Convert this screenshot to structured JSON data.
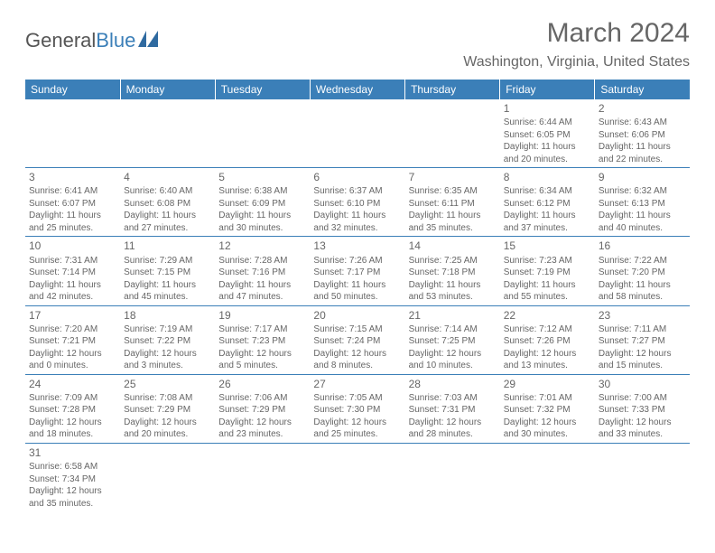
{
  "brand": {
    "left": "General",
    "right": "Blue"
  },
  "header": {
    "title": "March 2024",
    "location": "Washington, Virginia, United States"
  },
  "colors": {
    "header_bg": "#3b7fb8",
    "header_fg": "#ffffff",
    "row_divider": "#3b7fb8",
    "text": "#666666"
  },
  "daynames": [
    "Sunday",
    "Monday",
    "Tuesday",
    "Wednesday",
    "Thursday",
    "Friday",
    "Saturday"
  ],
  "weeks": [
    [
      null,
      null,
      null,
      null,
      null,
      {
        "n": "1",
        "sunrise": "Sunrise: 6:44 AM",
        "sunset": "Sunset: 6:05 PM",
        "day1": "Daylight: 11 hours",
        "day2": "and 20 minutes."
      },
      {
        "n": "2",
        "sunrise": "Sunrise: 6:43 AM",
        "sunset": "Sunset: 6:06 PM",
        "day1": "Daylight: 11 hours",
        "day2": "and 22 minutes."
      }
    ],
    [
      {
        "n": "3",
        "sunrise": "Sunrise: 6:41 AM",
        "sunset": "Sunset: 6:07 PM",
        "day1": "Daylight: 11 hours",
        "day2": "and 25 minutes."
      },
      {
        "n": "4",
        "sunrise": "Sunrise: 6:40 AM",
        "sunset": "Sunset: 6:08 PM",
        "day1": "Daylight: 11 hours",
        "day2": "and 27 minutes."
      },
      {
        "n": "5",
        "sunrise": "Sunrise: 6:38 AM",
        "sunset": "Sunset: 6:09 PM",
        "day1": "Daylight: 11 hours",
        "day2": "and 30 minutes."
      },
      {
        "n": "6",
        "sunrise": "Sunrise: 6:37 AM",
        "sunset": "Sunset: 6:10 PM",
        "day1": "Daylight: 11 hours",
        "day2": "and 32 minutes."
      },
      {
        "n": "7",
        "sunrise": "Sunrise: 6:35 AM",
        "sunset": "Sunset: 6:11 PM",
        "day1": "Daylight: 11 hours",
        "day2": "and 35 minutes."
      },
      {
        "n": "8",
        "sunrise": "Sunrise: 6:34 AM",
        "sunset": "Sunset: 6:12 PM",
        "day1": "Daylight: 11 hours",
        "day2": "and 37 minutes."
      },
      {
        "n": "9",
        "sunrise": "Sunrise: 6:32 AM",
        "sunset": "Sunset: 6:13 PM",
        "day1": "Daylight: 11 hours",
        "day2": "and 40 minutes."
      }
    ],
    [
      {
        "n": "10",
        "sunrise": "Sunrise: 7:31 AM",
        "sunset": "Sunset: 7:14 PM",
        "day1": "Daylight: 11 hours",
        "day2": "and 42 minutes."
      },
      {
        "n": "11",
        "sunrise": "Sunrise: 7:29 AM",
        "sunset": "Sunset: 7:15 PM",
        "day1": "Daylight: 11 hours",
        "day2": "and 45 minutes."
      },
      {
        "n": "12",
        "sunrise": "Sunrise: 7:28 AM",
        "sunset": "Sunset: 7:16 PM",
        "day1": "Daylight: 11 hours",
        "day2": "and 47 minutes."
      },
      {
        "n": "13",
        "sunrise": "Sunrise: 7:26 AM",
        "sunset": "Sunset: 7:17 PM",
        "day1": "Daylight: 11 hours",
        "day2": "and 50 minutes."
      },
      {
        "n": "14",
        "sunrise": "Sunrise: 7:25 AM",
        "sunset": "Sunset: 7:18 PM",
        "day1": "Daylight: 11 hours",
        "day2": "and 53 minutes."
      },
      {
        "n": "15",
        "sunrise": "Sunrise: 7:23 AM",
        "sunset": "Sunset: 7:19 PM",
        "day1": "Daylight: 11 hours",
        "day2": "and 55 minutes."
      },
      {
        "n": "16",
        "sunrise": "Sunrise: 7:22 AM",
        "sunset": "Sunset: 7:20 PM",
        "day1": "Daylight: 11 hours",
        "day2": "and 58 minutes."
      }
    ],
    [
      {
        "n": "17",
        "sunrise": "Sunrise: 7:20 AM",
        "sunset": "Sunset: 7:21 PM",
        "day1": "Daylight: 12 hours",
        "day2": "and 0 minutes."
      },
      {
        "n": "18",
        "sunrise": "Sunrise: 7:19 AM",
        "sunset": "Sunset: 7:22 PM",
        "day1": "Daylight: 12 hours",
        "day2": "and 3 minutes."
      },
      {
        "n": "19",
        "sunrise": "Sunrise: 7:17 AM",
        "sunset": "Sunset: 7:23 PM",
        "day1": "Daylight: 12 hours",
        "day2": "and 5 minutes."
      },
      {
        "n": "20",
        "sunrise": "Sunrise: 7:15 AM",
        "sunset": "Sunset: 7:24 PM",
        "day1": "Daylight: 12 hours",
        "day2": "and 8 minutes."
      },
      {
        "n": "21",
        "sunrise": "Sunrise: 7:14 AM",
        "sunset": "Sunset: 7:25 PM",
        "day1": "Daylight: 12 hours",
        "day2": "and 10 minutes."
      },
      {
        "n": "22",
        "sunrise": "Sunrise: 7:12 AM",
        "sunset": "Sunset: 7:26 PM",
        "day1": "Daylight: 12 hours",
        "day2": "and 13 minutes."
      },
      {
        "n": "23",
        "sunrise": "Sunrise: 7:11 AM",
        "sunset": "Sunset: 7:27 PM",
        "day1": "Daylight: 12 hours",
        "day2": "and 15 minutes."
      }
    ],
    [
      {
        "n": "24",
        "sunrise": "Sunrise: 7:09 AM",
        "sunset": "Sunset: 7:28 PM",
        "day1": "Daylight: 12 hours",
        "day2": "and 18 minutes."
      },
      {
        "n": "25",
        "sunrise": "Sunrise: 7:08 AM",
        "sunset": "Sunset: 7:29 PM",
        "day1": "Daylight: 12 hours",
        "day2": "and 20 minutes."
      },
      {
        "n": "26",
        "sunrise": "Sunrise: 7:06 AM",
        "sunset": "Sunset: 7:29 PM",
        "day1": "Daylight: 12 hours",
        "day2": "and 23 minutes."
      },
      {
        "n": "27",
        "sunrise": "Sunrise: 7:05 AM",
        "sunset": "Sunset: 7:30 PM",
        "day1": "Daylight: 12 hours",
        "day2": "and 25 minutes."
      },
      {
        "n": "28",
        "sunrise": "Sunrise: 7:03 AM",
        "sunset": "Sunset: 7:31 PM",
        "day1": "Daylight: 12 hours",
        "day2": "and 28 minutes."
      },
      {
        "n": "29",
        "sunrise": "Sunrise: 7:01 AM",
        "sunset": "Sunset: 7:32 PM",
        "day1": "Daylight: 12 hours",
        "day2": "and 30 minutes."
      },
      {
        "n": "30",
        "sunrise": "Sunrise: 7:00 AM",
        "sunset": "Sunset: 7:33 PM",
        "day1": "Daylight: 12 hours",
        "day2": "and 33 minutes."
      }
    ],
    [
      {
        "n": "31",
        "sunrise": "Sunrise: 6:58 AM",
        "sunset": "Sunset: 7:34 PM",
        "day1": "Daylight: 12 hours",
        "day2": "and 35 minutes."
      },
      null,
      null,
      null,
      null,
      null,
      null
    ]
  ]
}
